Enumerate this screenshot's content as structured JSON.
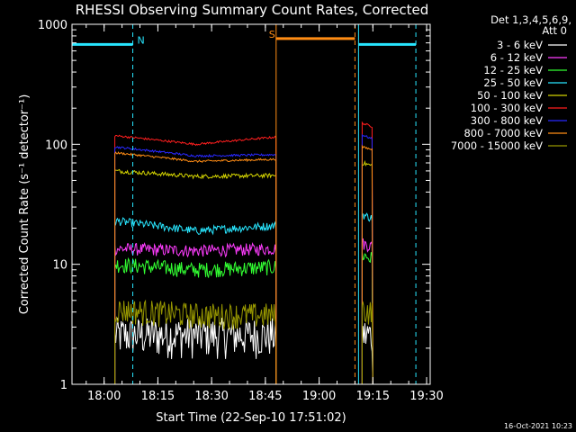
{
  "chart_data": {
    "type": "line",
    "title": "RHESSI Observing Summary Count Rates, Corrected",
    "xlabel": "Start Time (22-Sep-10 17:51:02)",
    "ylabel": "Corrected Count Rate (s⁻¹ detector⁻¹)",
    "yscale": "log",
    "ylim": [
      1,
      1000
    ],
    "xlim": [
      "17:51:02",
      "19:31:00"
    ],
    "x_ticks": [
      "18:00",
      "18:15",
      "18:30",
      "18:45",
      "19:00",
      "19:15",
      "19:30"
    ],
    "y_ticks": [
      "1",
      "10",
      "100",
      "1000"
    ],
    "legend_header": [
      "Det 1,3,4,5,6,9,",
      "Att 0"
    ],
    "legend_position": "right-outside",
    "grid": false,
    "timestamp": "16-Oct-2021 10:23",
    "segments": [
      {
        "start": "18:03",
        "end": "18:48"
      },
      {
        "start": "19:12",
        "end": "19:15"
      }
    ],
    "series": [
      {
        "name": "3 - 6 keV",
        "color": "#ffffff",
        "seg1": [
          [
            0.0,
            2.6
          ],
          [
            0.5,
            2.6
          ],
          [
            1.0,
            2.6
          ]
        ],
        "seg2": [
          2.6,
          2.6
        ],
        "noise": 0.38
      },
      {
        "name": "6 - 12 keV",
        "color": "#ff3cff",
        "seg1": [
          [
            0.0,
            13.5
          ],
          [
            0.5,
            13
          ],
          [
            1.0,
            13.5
          ]
        ],
        "seg2": [
          15,
          14
        ],
        "noise": 0.12
      },
      {
        "name": "12 - 25 keV",
        "color": "#32ff32",
        "seg1": [
          [
            0.0,
            10
          ],
          [
            0.5,
            9
          ],
          [
            1.0,
            9.5
          ]
        ],
        "seg2": [
          12,
          11
        ],
        "noise": 0.15
      },
      {
        "name": "25 - 50 keV",
        "color": "#28e6ff",
        "seg1": [
          [
            0.0,
            23
          ],
          [
            0.5,
            19
          ],
          [
            1.0,
            21
          ]
        ],
        "seg2": [
          26,
          24
        ],
        "noise": 0.08
      },
      {
        "name": "50 - 100 keV",
        "color": "#d2d200",
        "seg1": [
          [
            0.0,
            60
          ],
          [
            0.5,
            54
          ],
          [
            1.0,
            55
          ]
        ],
        "seg2": [
          70,
          66
        ],
        "noise": 0.04
      },
      {
        "name": "100 - 300 keV",
        "color": "#ff1e1e",
        "seg1": [
          [
            0.0,
            118
          ],
          [
            0.5,
            100
          ],
          [
            1.0,
            115
          ]
        ],
        "seg2": [
          150,
          140
        ],
        "noise": 0.02
      },
      {
        "name": "300 - 800 keV",
        "color": "#2828ff",
        "seg1": [
          [
            0.0,
            95
          ],
          [
            0.5,
            80
          ],
          [
            1.0,
            82
          ]
        ],
        "seg2": [
          120,
          110
        ],
        "noise": 0.02
      },
      {
        "name": "800 - 7000 keV",
        "color": "#ff8c14",
        "seg1": [
          [
            0.0,
            85
          ],
          [
            0.5,
            72
          ],
          [
            1.0,
            75
          ]
        ],
        "seg2": [
          95,
          90
        ],
        "noise": 0.02
      },
      {
        "name": "7000 - 15000 keV",
        "color": "#969600",
        "seg1": [
          [
            0.0,
            4.2
          ],
          [
            0.5,
            3.8
          ],
          [
            1.0,
            3.8
          ]
        ],
        "seg2": [
          4.2,
          4.0
        ],
        "noise": 0.25
      }
    ],
    "annotations": [
      {
        "label": "N",
        "color": "#28e6ff",
        "bar_start": "17:51:02",
        "bar_end": "18:08",
        "level": 680,
        "marker_time": "18:08"
      },
      {
        "label": "S",
        "color": "#ff8c14",
        "bar_start": "18:48",
        "bar_end": "19:10",
        "level": 760,
        "marker_time": "18:48"
      },
      {
        "label": "",
        "color": "#28e6ff",
        "bar_start": "19:11",
        "bar_end": "19:27",
        "level": 680,
        "marker_time": "19:27"
      }
    ],
    "vlines": [
      {
        "time": "17:51:02",
        "color": "#28e6ff",
        "style": "solid"
      },
      {
        "time": "18:08",
        "color": "#28e6ff",
        "style": "dashed"
      },
      {
        "time": "18:48",
        "color": "#ff8c14",
        "style": "solid"
      },
      {
        "time": "19:10",
        "color": "#ff8c14",
        "style": "dashed"
      },
      {
        "time": "19:11",
        "color": "#28e6ff",
        "style": "solid"
      },
      {
        "time": "19:27",
        "color": "#28e6ff",
        "style": "dashed"
      }
    ]
  }
}
